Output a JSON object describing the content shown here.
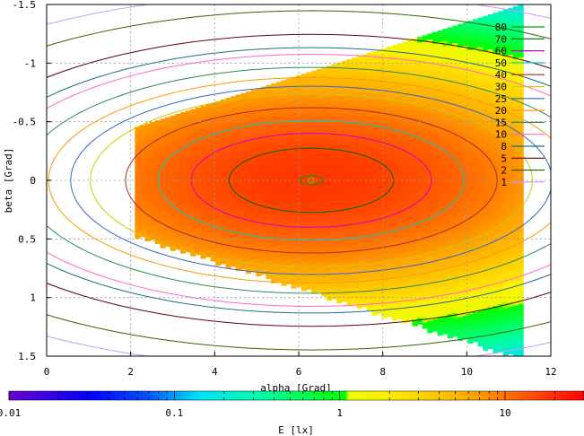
{
  "chart_data": {
    "type": "heatmap",
    "xlabel": "alpha [Grad]",
    "ylabel": "beta [Grad]",
    "xlim": [
      0,
      12
    ],
    "ylim": [
      -1.5,
      1.5
    ],
    "y_reversed": true,
    "grid": true,
    "x_ticks": [
      "0",
      "2",
      "4",
      "6",
      "8",
      "10",
      "12"
    ],
    "x_tick_values": [
      0,
      2,
      4,
      6,
      8,
      10,
      12
    ],
    "y_ticks": [
      "-1.5",
      "-1",
      "-0.5",
      "0",
      "0.5",
      "1",
      "1.5"
    ],
    "y_tick_values": [
      -1.5,
      -1,
      -0.5,
      0,
      0.5,
      1,
      1.5
    ],
    "peak": {
      "alpha": 6.3,
      "beta": 0.0
    },
    "region": {
      "alpha_min": 2.1,
      "alpha_max": 11.3,
      "beta_half_width_at_min": 0.45,
      "beta_half_width_at_max": 1.5
    },
    "contour_levels": [
      {
        "label": "80",
        "value": 80,
        "color": "#009900"
      },
      {
        "label": "70",
        "value": 70,
        "color": "#006400"
      },
      {
        "label": "60",
        "value": 60,
        "color": "#cc00cc"
      },
      {
        "label": "50",
        "value": 50,
        "color": "#00cccc"
      },
      {
        "label": "40",
        "value": 40,
        "color": "#a52a2a"
      },
      {
        "label": "30",
        "value": 30,
        "color": "#cccc00"
      },
      {
        "label": "25",
        "value": 25,
        "color": "#3366cc"
      },
      {
        "label": "20",
        "value": 20,
        "color": "#ff9900"
      },
      {
        "label": "15",
        "value": 15,
        "color": "#2e8b57"
      },
      {
        "label": "10",
        "value": 10,
        "color": "#ff66cc"
      },
      {
        "label": "8",
        "value": 8,
        "color": "#1f6f8b"
      },
      {
        "label": "5",
        "value": 5,
        "color": "#660000"
      },
      {
        "label": "2",
        "value": 2,
        "color": "#336600"
      },
      {
        "label": "1",
        "value": 1,
        "color": "#cc99ff"
      }
    ],
    "colorbar": {
      "label": "E [lx]",
      "scale": "log",
      "range": [
        0.01,
        30
      ],
      "ticks": [
        "0.01",
        "0.1",
        "1",
        "10"
      ],
      "tick_values": [
        0.01,
        0.1,
        1,
        10
      ]
    }
  }
}
